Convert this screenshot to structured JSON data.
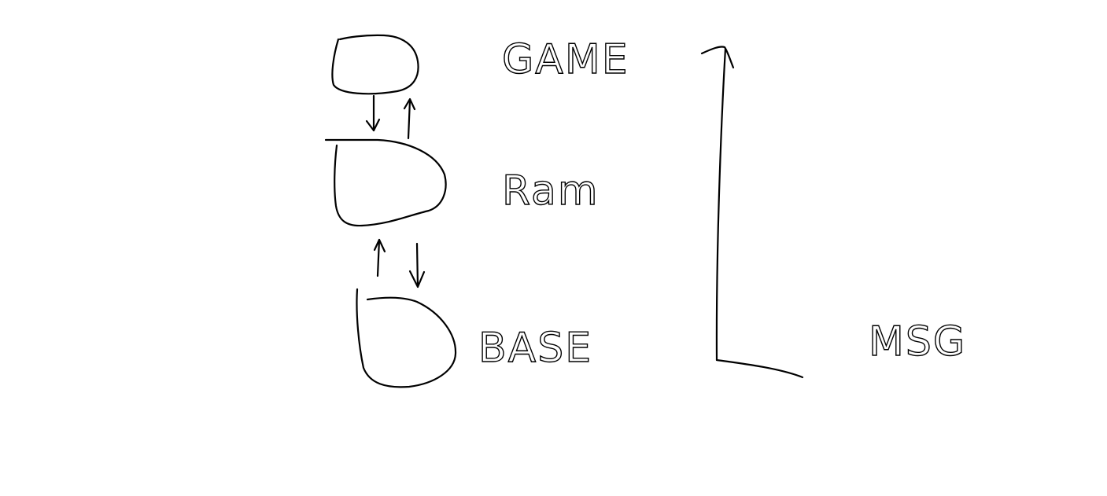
{
  "diagram": {
    "layers": [
      {
        "id": "game",
        "label": "GAME"
      },
      {
        "id": "ram",
        "label": "Ram"
      },
      {
        "id": "base",
        "label": "BASE"
      }
    ],
    "flows": [
      {
        "from": "game",
        "to": "ram",
        "direction": "down"
      },
      {
        "from": "ram",
        "to": "game",
        "direction": "up"
      },
      {
        "from": "base",
        "to": "ram",
        "direction": "up"
      },
      {
        "from": "ram",
        "to": "base",
        "direction": "down"
      }
    ],
    "axis_label": "MSG",
    "stroke_color": "#000000",
    "background_color": "#ffffff"
  }
}
